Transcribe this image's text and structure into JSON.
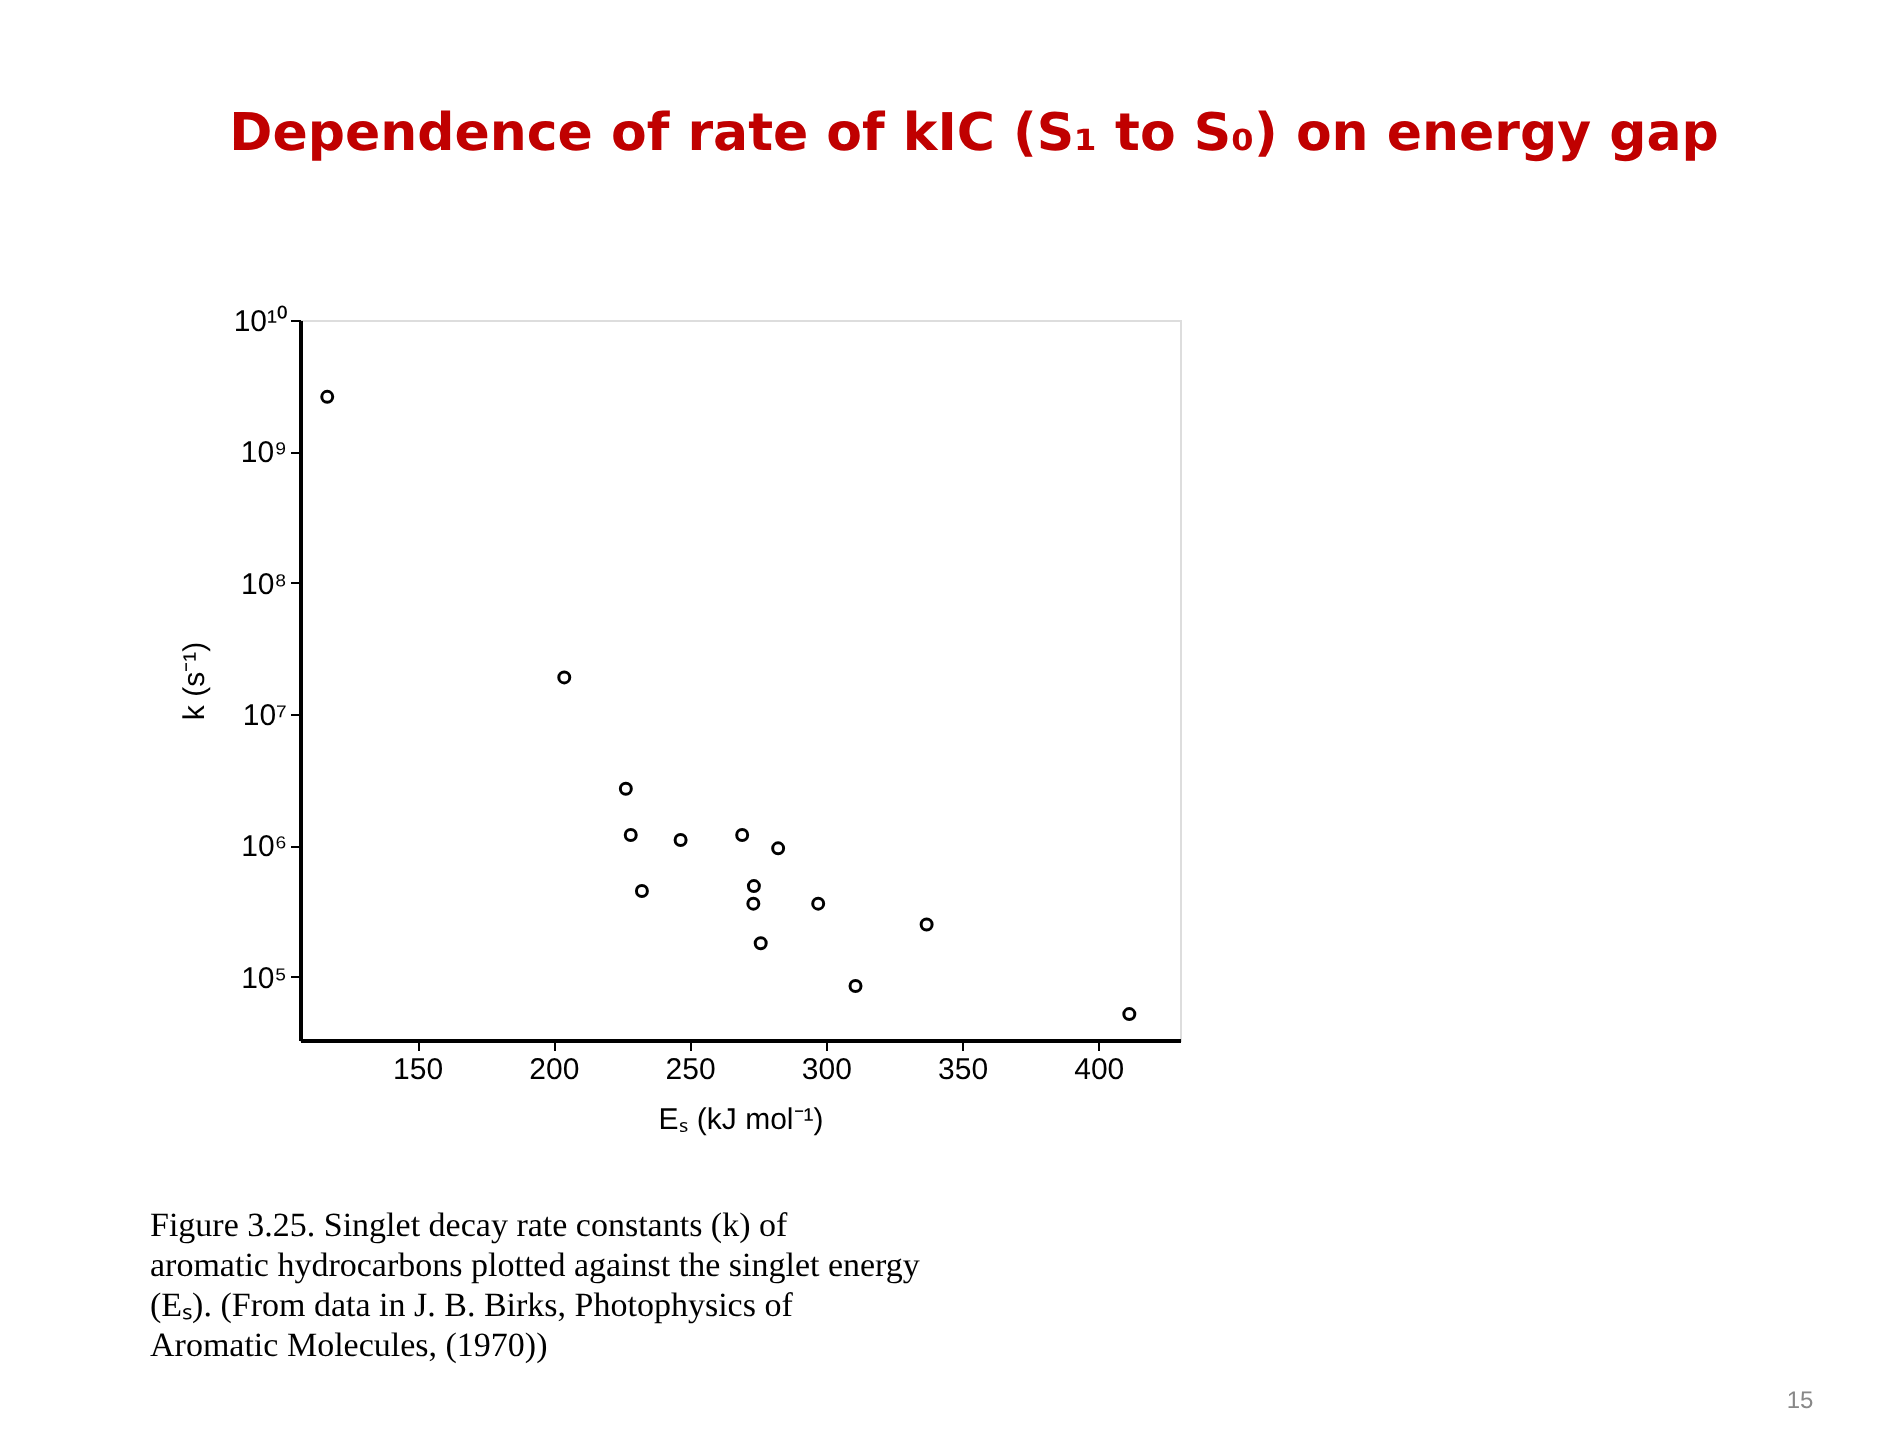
{
  "chart_data": {
    "type": "scatter",
    "title": "Dependence of rate of kIC (S₁ to S₀) on energy gap",
    "xlabel": "Eₛ (kJ mol⁻¹)",
    "ylabel": "k (s⁻¹)",
    "x": [
      117,
      204,
      226.6,
      228.4,
      232.5,
      246.7,
      269.3,
      282.5,
      273.6,
      273.4,
      276.1,
      297.2,
      310.9,
      337,
      411.4
    ],
    "series": [
      {
        "color": "#000000",
        "values": [
          2600000000,
          19000000,
          2700000,
          1200000,
          450000,
          1100000,
          1200000,
          950000,
          490000,
          360000,
          180000,
          360000,
          85000,
          250000,
          52000
        ]
      }
    ],
    "log": "y",
    "xlim": [
      107,
      430
    ],
    "ylim": [
      33000,
      10000000000
    ],
    "xticks": [
      150,
      200,
      250,
      300,
      350,
      400
    ],
    "yticks": [
      {
        "value": 100000,
        "label": "10⁵"
      },
      {
        "value": 1000000,
        "label": "10⁶"
      },
      {
        "value": 10000000,
        "label": "10⁷"
      },
      {
        "value": 100000000,
        "label": "10⁸"
      },
      {
        "value": 1000000000,
        "label": "10⁹"
      },
      {
        "value": 10000000000,
        "label": "10¹⁰"
      }
    ],
    "grid": false,
    "marker": "circle",
    "annotations": [
      "Figure 3.25. Singlet decay rate constants (k) of aromatic hydrocarbons plotted against the singlet energy (Eₛ). (From data in J. B. Birks, Photophysics of Aromatic Molecules, (1970))",
      "15"
    ]
  }
}
